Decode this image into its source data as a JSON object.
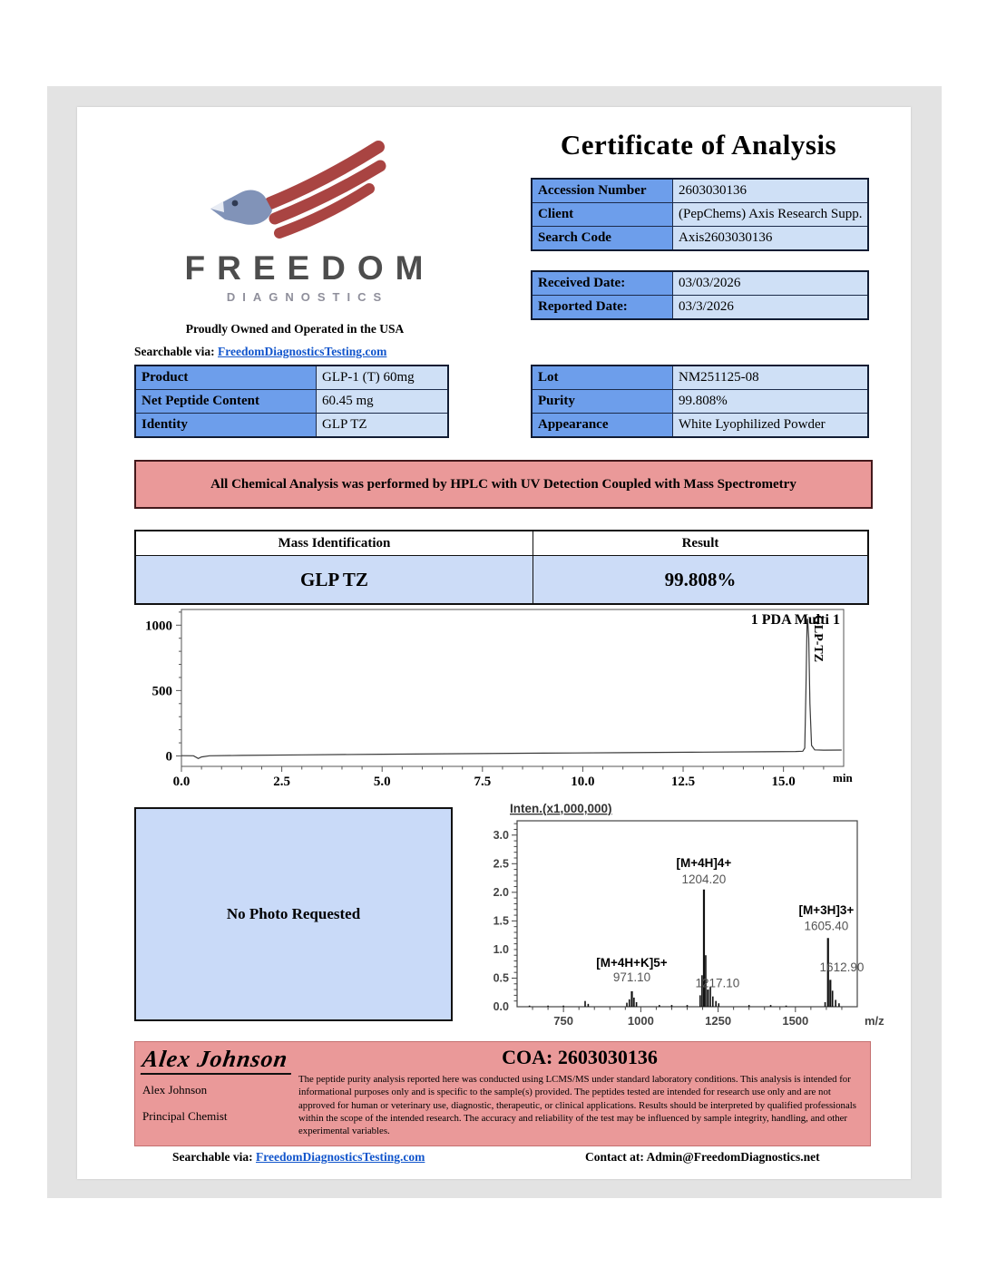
{
  "header": {
    "title": "Certificate of Analysis"
  },
  "logo": {
    "brand": "FREEDOM",
    "sub": "DIAGNOSTICS",
    "tagline": "Proudly Owned and Operated in the USA"
  },
  "search_line": {
    "label": "Searchable via:",
    "link": "FreedomDiagnosticsTesting.com"
  },
  "accession_table": {
    "rows": [
      {
        "label": "Accession Number",
        "value": "2603030136"
      },
      {
        "label": "Client",
        "value": "(PepChems) Axis Research Supp."
      },
      {
        "label": "Search Code",
        "value": "Axis2603030136"
      }
    ]
  },
  "dates_table": {
    "rows": [
      {
        "label": "Received Date:",
        "value": "03/03/2026"
      },
      {
        "label": "Reported Date:",
        "value": "03/3/2026"
      }
    ]
  },
  "product_table": {
    "rows": [
      {
        "label": "Product",
        "value": "GLP-1 (T) 60mg"
      },
      {
        "label": "Net Peptide Content",
        "value": "60.45 mg"
      },
      {
        "label": "Identity",
        "value": "GLP TZ"
      }
    ]
  },
  "lot_table": {
    "rows": [
      {
        "label": "Lot",
        "value": "NM251125-08"
      },
      {
        "label": "Purity",
        "value": "99.808%"
      },
      {
        "label": "Appearance",
        "value": "White Lyophilized Powder"
      }
    ]
  },
  "method_banner": "All Chemical Analysis was performed by HPLC with UV Detection Coupled with Mass Spectrometry",
  "mass_table": {
    "header_col1": "Mass Identification",
    "header_col2": "Result",
    "row_col1": "GLP TZ",
    "row_col2": "99.808%"
  },
  "photo_box_text": "No Photo Requested",
  "signature": {
    "script": "Alex Johnson",
    "name": "Alex Johnson",
    "role": "Principal Chemist"
  },
  "coa_heading": "COA: 2603030136",
  "disclaimer": "The peptide purity analysis reported here was conducted using LCMS/MS under standard laboratory conditions. This analysis is intended for informational purposes only and is specific to the sample(s) provided. The peptides tested are intended for research use only and are not approved for human or veterinary use, diagnostic, therapeutic, or clinical applications. Results should be interpreted by qualified professionals within the scope of the intended research. The accuracy and reliability of the test may be influenced by sample integrity, handling, and other experimental variables.",
  "footer": {
    "search_label": "Searchable via:",
    "search_link": "FreedomDiagnosticsTesting.com",
    "contact": "Contact at: Admin@FreedomDiagnostics.net"
  },
  "colors": {
    "label_blue": "#6d9eeb",
    "value_blue": "#cfe0f6",
    "photo_blue": "#c9daf8",
    "pink": "#ea9999",
    "link_blue": "#1155cc",
    "logo_red": "#a94442",
    "logo_gray_blue": "#8193b8"
  },
  "chart_data": [
    {
      "type": "line",
      "name": "hplc_uv_chromatogram",
      "detector_label": "1 PDA Multi 1",
      "peak_label": "GLP-TZ",
      "xlabel": "min",
      "ylabel": "",
      "xlim": [
        0,
        16.5
      ],
      "ylim": [
        -80,
        1120
      ],
      "xticks": [
        0.0,
        2.5,
        5.0,
        7.5,
        10.0,
        12.5,
        15.0
      ],
      "yticks": [
        0,
        500,
        1000
      ],
      "main_peak": {
        "retention_time_min": 15.6,
        "height_mAU": 1050
      },
      "trace": [
        [
          0,
          2
        ],
        [
          0.3,
          1
        ],
        [
          0.42,
          -20
        ],
        [
          0.5,
          -8
        ],
        [
          0.7,
          1
        ],
        [
          1.5,
          4
        ],
        [
          3,
          8
        ],
        [
          5,
          13
        ],
        [
          7,
          17
        ],
        [
          9,
          21
        ],
        [
          11,
          25
        ],
        [
          13,
          29
        ],
        [
          14.5,
          32
        ],
        [
          15.3,
          34
        ],
        [
          15.48,
          36
        ],
        [
          15.53,
          60
        ],
        [
          15.56,
          500
        ],
        [
          15.59,
          1040
        ],
        [
          15.6,
          1050
        ],
        [
          15.63,
          900
        ],
        [
          15.66,
          400
        ],
        [
          15.7,
          80
        ],
        [
          15.78,
          46
        ],
        [
          16,
          44
        ],
        [
          16.45,
          45
        ]
      ]
    },
    {
      "type": "bar",
      "name": "mass_spectrum",
      "title": "Inten.(x1,000,000)",
      "xlabel": "m/z",
      "ylabel": "",
      "xlim": [
        600,
        1700
      ],
      "ylim": [
        0,
        3.25
      ],
      "xticks": [
        750,
        1000,
        1250,
        1500
      ],
      "yticks": [
        "0.0",
        "0.5",
        "1.0",
        "1.5",
        "2.0",
        "2.5",
        "3.0"
      ],
      "peaks": [
        {
          "mz": 971.1,
          "intensity": 0.27,
          "ion": "[M+4H+K]5+",
          "label": "971.10"
        },
        {
          "mz": 1204.2,
          "intensity": 2.05,
          "ion": "[M+4H]4+",
          "label": "1204.20"
        },
        {
          "mz": 1217.1,
          "intensity": 0.3,
          "ion": "",
          "label": "1217.10"
        },
        {
          "mz": 1605.4,
          "intensity": 1.2,
          "ion": "[M+3H]3+",
          "label": "1605.40"
        },
        {
          "mz": 1612.9,
          "intensity": 0.47,
          "ion": "",
          "label": "1612.90"
        }
      ],
      "cluster_peaks": [
        [
          640,
          0.02
        ],
        [
          700,
          0.02
        ],
        [
          750,
          0.02
        ],
        [
          820,
          0.1
        ],
        [
          830,
          0.05
        ],
        [
          955,
          0.07
        ],
        [
          963,
          0.13
        ],
        [
          978,
          0.16
        ],
        [
          986,
          0.08
        ],
        [
          1060,
          0.03
        ],
        [
          1100,
          0.03
        ],
        [
          1150,
          0.03
        ],
        [
          1192,
          0.2
        ],
        [
          1198,
          0.55
        ],
        [
          1210,
          0.9
        ],
        [
          1225,
          0.35
        ],
        [
          1233,
          0.18
        ],
        [
          1243,
          0.1
        ],
        [
          1252,
          0.06
        ],
        [
          1350,
          0.03
        ],
        [
          1420,
          0.03
        ],
        [
          1470,
          0.02
        ],
        [
          1596,
          0.08
        ],
        [
          1620,
          0.28
        ],
        [
          1630,
          0.12
        ],
        [
          1641,
          0.06
        ]
      ]
    }
  ]
}
